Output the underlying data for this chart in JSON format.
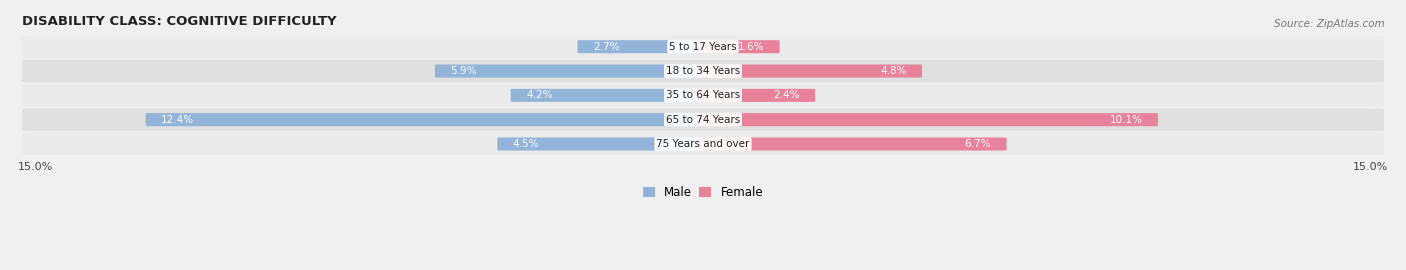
{
  "title": "DISABILITY CLASS: COGNITIVE DIFFICULTY",
  "source": "Source: ZipAtlas.com",
  "categories": [
    "5 to 17 Years",
    "18 to 34 Years",
    "35 to 64 Years",
    "65 to 74 Years",
    "75 Years and over"
  ],
  "male_values": [
    2.7,
    5.9,
    4.2,
    12.4,
    4.5
  ],
  "female_values": [
    1.6,
    4.8,
    2.4,
    10.1,
    6.7
  ],
  "x_max": 15.0,
  "male_color": "#92b4d8",
  "female_color": "#e8829a",
  "row_bg_even": "#ebebeb",
  "row_bg_odd": "#e0e0e0",
  "title_fontsize": 9.5,
  "bar_fontsize": 7.5,
  "cat_fontsize": 7.5,
  "legend_fontsize": 8.5,
  "axis_tick_fontsize": 8
}
